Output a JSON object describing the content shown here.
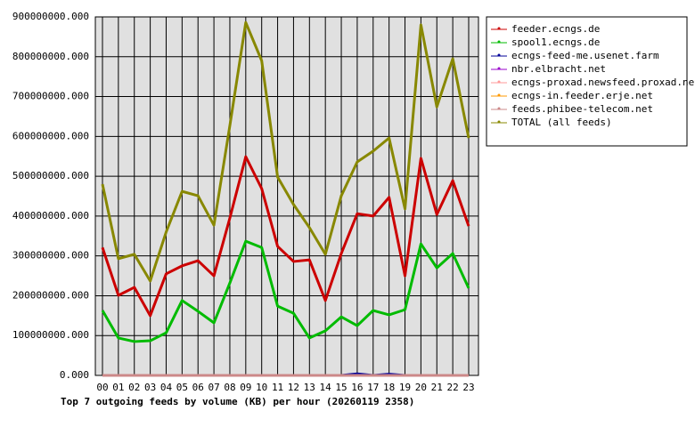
{
  "chart_data": {
    "type": "line",
    "title": "Top 7 outgoing feeds by volume (KB) per hour (20260119 2358)",
    "categories": [
      "00",
      "01",
      "02",
      "03",
      "04",
      "05",
      "06",
      "07",
      "08",
      "09",
      "10",
      "11",
      "12",
      "13",
      "14",
      "15",
      "16",
      "17",
      "18",
      "19",
      "20",
      "21",
      "22",
      "23"
    ],
    "ylim": [
      0,
      900000000
    ],
    "yticks": [
      {
        "value": 0,
        "label": "0.000"
      },
      {
        "value": 100000000,
        "label": "100000000.000"
      },
      {
        "value": 200000000,
        "label": "200000000.000"
      },
      {
        "value": 300000000,
        "label": "300000000.000"
      },
      {
        "value": 400000000,
        "label": "400000000.000"
      },
      {
        "value": 500000000,
        "label": "500000000.000"
      },
      {
        "value": 600000000,
        "label": "600000000.000"
      },
      {
        "value": 700000000,
        "label": "700000000.000"
      },
      {
        "value": 800000000,
        "label": "800000000.000"
      },
      {
        "value": 900000000,
        "label": "900000000.000"
      }
    ],
    "grid": true,
    "legend": "right",
    "series": [
      {
        "name": "feeder.ecngs.de",
        "color": "#cc0000",
        "values": [
          321000000,
          201000000,
          221000000,
          150000000,
          255000000,
          275000000,
          288000000,
          250000000,
          395000000,
          549000000,
          469000000,
          324000000,
          286000000,
          290000000,
          188000000,
          306000000,
          406000000,
          400000000,
          447000000,
          250000000,
          545000000,
          404000000,
          489000000,
          375000000
        ]
      },
      {
        "name": "spool1.ecngs.de",
        "color": "#00bb00",
        "values": [
          163000000,
          94000000,
          85000000,
          87000000,
          107000000,
          188000000,
          161000000,
          132000000,
          232000000,
          337000000,
          321000000,
          174000000,
          156000000,
          94000000,
          112000000,
          147000000,
          125000000,
          163000000,
          152000000,
          165000000,
          330000000,
          270000000,
          306000000,
          219000000
        ]
      },
      {
        "name": "ecngs-feed-me.usenet.farm",
        "color": "#000099",
        "values": [
          0,
          0,
          0,
          0,
          0,
          0,
          0,
          0,
          0,
          0,
          0,
          0,
          0,
          0,
          0,
          0,
          4000000,
          0,
          3000000,
          0,
          0,
          0,
          0,
          0
        ]
      },
      {
        "name": "nbr.elbracht.net",
        "color": "#9900cc",
        "values": [
          0,
          0,
          0,
          0,
          0,
          0,
          0,
          0,
          0,
          0,
          0,
          0,
          0,
          0,
          0,
          0,
          0,
          0,
          0,
          0,
          0,
          0,
          0,
          0
        ]
      },
      {
        "name": "ecngs-proxad.newsfeed.proxad.net",
        "color": "#ff9999",
        "values": [
          0,
          0,
          0,
          0,
          0,
          0,
          0,
          0,
          0,
          0,
          0,
          0,
          0,
          0,
          0,
          0,
          0,
          0,
          0,
          0,
          0,
          0,
          0,
          0
        ]
      },
      {
        "name": "ecngs-in.feeder.erje.net",
        "color": "#ff9900",
        "values": [
          0,
          0,
          0,
          0,
          0,
          0,
          0,
          0,
          0,
          0,
          0,
          0,
          0,
          0,
          0,
          0,
          0,
          0,
          0,
          0,
          0,
          0,
          0,
          0
        ]
      },
      {
        "name": "feeds.phibee-telecom.net",
        "color": "#cc8888",
        "values": [
          0,
          0,
          0,
          0,
          0,
          0,
          0,
          0,
          0,
          0,
          0,
          0,
          0,
          0,
          0,
          0,
          0,
          0,
          0,
          0,
          0,
          0,
          0,
          0
        ]
      },
      {
        "name": "TOTAL (all feeds)",
        "color": "#888800",
        "values": [
          480000000,
          293000000,
          304000000,
          237000000,
          360000000,
          462000000,
          451000000,
          377000000,
          627000000,
          886000000,
          790000000,
          498000000,
          429000000,
          371000000,
          304000000,
          451000000,
          536000000,
          563000000,
          596000000,
          418000000,
          880000000,
          674000000,
          795000000,
          596000000
        ]
      }
    ]
  }
}
